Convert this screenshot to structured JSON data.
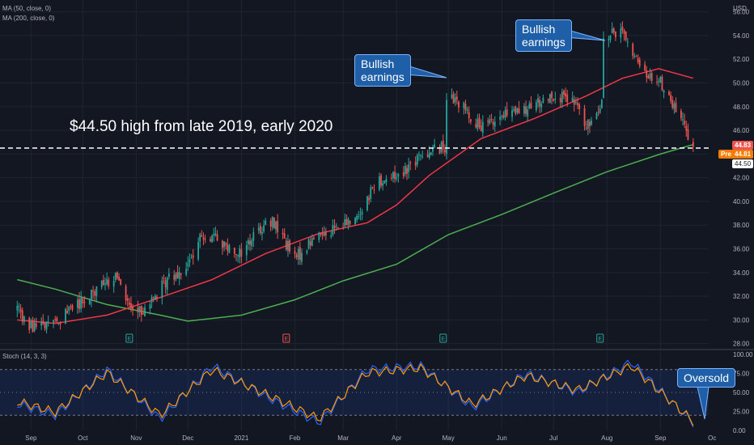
{
  "indicators": {
    "ma50_label": "MA (50, close, 0)",
    "ma200_label": "MA (200, close, 0)",
    "stoch_label": "Stoch (14, 3, 3)"
  },
  "headline": "$44.50 high from late 2019, early 2020",
  "callouts": {
    "earnings_1": "Bullish\nearnings",
    "earnings_2": "Bullish\nearnings",
    "oversold": "Oversold"
  },
  "price_tags": {
    "last": "44.83",
    "pre_label": "Pre",
    "pre": "44.81",
    "level": "44.50"
  },
  "colors": {
    "background": "#131722",
    "up_candle": "#26a69a",
    "down_candle": "#ef5350",
    "ma50": "#f23645",
    "ma200": "#4caf50",
    "stoch_k": "#2962ff",
    "stoch_d": "#ff9800",
    "callout_fill": "#1e5fa8",
    "earnings_green": "#26a69a",
    "earnings_red": "#ef5350"
  },
  "chart_data": [
    {
      "type": "candlestick",
      "yaxis_label": "USD",
      "ylim": [
        27.5,
        57
      ],
      "y_ticks": [
        "28.00",
        "30.00",
        "32.00",
        "34.00",
        "36.00",
        "38.00",
        "40.00",
        "42.00",
        "44.00",
        "46.00",
        "48.00",
        "50.00",
        "52.00",
        "54.00",
        "56.00"
      ],
      "x_ticks": [
        "Sep",
        "Oct",
        "Nov",
        "Dec",
        "2021",
        "Feb",
        "Mar",
        "Apr",
        "May",
        "Jun",
        "Jul",
        "Aug",
        "Sep",
        "Oc"
      ],
      "close_path": [
        [
          "2020-08-24",
          30.8
        ],
        [
          "2020-09-01",
          29.4
        ],
        [
          "2020-09-10",
          29.6
        ],
        [
          "2020-09-20",
          30.3
        ],
        [
          "2020-10-01",
          31.6
        ],
        [
          "2020-10-10",
          32.8
        ],
        [
          "2020-10-20",
          33.6
        ],
        [
          "2020-10-31",
          30.4
        ],
        [
          "2020-11-10",
          31.6
        ],
        [
          "2020-11-20",
          33.6
        ],
        [
          "2020-12-01",
          34.6
        ],
        [
          "2020-12-10",
          37.3
        ],
        [
          "2020-12-20",
          36.6
        ],
        [
          "2021-01-01",
          35.7
        ],
        [
          "2021-01-10",
          37.6
        ],
        [
          "2021-01-20",
          38.3
        ],
        [
          "2021-02-01",
          35.1
        ],
        [
          "2021-02-10",
          36.6
        ],
        [
          "2021-02-20",
          37.6
        ],
        [
          "2021-03-01",
          37.9
        ],
        [
          "2021-03-10",
          38.9
        ],
        [
          "2021-03-20",
          41.7
        ],
        [
          "2021-04-01",
          42.2
        ],
        [
          "2021-04-10",
          43.2
        ],
        [
          "2021-04-20",
          44.3
        ],
        [
          "2021-04-29",
          44.6
        ],
        [
          "2021-04-30",
          48.9
        ],
        [
          "2021-05-10",
          47.9
        ],
        [
          "2021-05-20",
          46.1
        ],
        [
          "2021-06-01",
          47.2
        ],
        [
          "2021-06-15",
          47.6
        ],
        [
          "2021-06-30",
          49.1
        ],
        [
          "2021-07-15",
          48.1
        ],
        [
          "2021-07-20",
          46.1
        ],
        [
          "2021-07-29",
          48.6
        ],
        [
          "2021-07-30",
          53.6
        ],
        [
          "2021-08-10",
          54.6
        ],
        [
          "2021-08-20",
          51.1
        ],
        [
          "2021-09-01",
          50.1
        ],
        [
          "2021-09-10",
          47.6
        ],
        [
          "2021-09-20",
          44.8
        ]
      ],
      "series": [
        {
          "name": "MA (50, close, 0)",
          "x": [
            "2020-08-24",
            "2020-09-15",
            "2020-10-15",
            "2020-11-15",
            "2020-12-15",
            "2021-01-15",
            "2021-02-15",
            "2021-03-15",
            "2021-04-01",
            "2021-04-20",
            "2021-05-20",
            "2021-06-20",
            "2021-07-20",
            "2021-08-10",
            "2021-08-31",
            "2021-09-20"
          ],
          "values": [
            30.0,
            29.7,
            30.4,
            31.9,
            33.4,
            35.6,
            37.3,
            38.2,
            39.7,
            42.2,
            45.3,
            47.0,
            48.9,
            50.4,
            51.2,
            50.4
          ]
        },
        {
          "name": "MA (200, close, 0)",
          "x": [
            "2020-08-24",
            "2020-09-15",
            "2020-10-15",
            "2020-11-15",
            "2020-12-01",
            "2021-01-01",
            "2021-02-01",
            "2021-03-01",
            "2021-04-01",
            "2021-05-01",
            "2021-06-01",
            "2021-07-01",
            "2021-08-01",
            "2021-09-01",
            "2021-09-20"
          ],
          "values": [
            33.4,
            32.6,
            31.3,
            30.4,
            29.9,
            30.4,
            31.7,
            33.3,
            34.7,
            37.2,
            38.9,
            40.7,
            42.5,
            44.0,
            44.8
          ]
        }
      ],
      "reference_line": {
        "value": 44.5,
        "style": "dashed"
      },
      "earnings_dates": [
        "2020-10-28",
        "2021-01-27",
        "2021-04-28",
        "2021-07-28"
      ]
    },
    {
      "type": "line",
      "title": "Stoch (14, 3, 3)",
      "ylim": [
        0,
        100
      ],
      "y_ticks": [
        "0.00",
        "25.00",
        "50.00",
        "75.00",
        "100.00"
      ],
      "band": [
        20,
        80
      ],
      "series": [
        {
          "name": "%K",
          "x": [
            "2020-08-24",
            "2020-09-15",
            "2020-10-15",
            "2020-11-15",
            "2020-12-15",
            "2021-01-15",
            "2021-02-15",
            "2021-03-15",
            "2021-04-15",
            "2021-05-15",
            "2021-06-15",
            "2021-07-15",
            "2021-08-15",
            "2021-09-20"
          ],
          "values": [
            35,
            20,
            80,
            15,
            85,
            45,
            10,
            80,
            85,
            30,
            75,
            50,
            90,
            10
          ]
        },
        {
          "name": "%D",
          "x": [
            "2020-08-24",
            "2020-09-15",
            "2020-10-15",
            "2020-11-15",
            "2020-12-15",
            "2021-01-15",
            "2021-02-15",
            "2021-03-15",
            "2021-04-15",
            "2021-05-15",
            "2021-06-15",
            "2021-07-15",
            "2021-08-15",
            "2021-09-20"
          ],
          "values": [
            38,
            24,
            76,
            20,
            80,
            48,
            15,
            76,
            82,
            34,
            72,
            53,
            85,
            12
          ]
        }
      ]
    }
  ]
}
